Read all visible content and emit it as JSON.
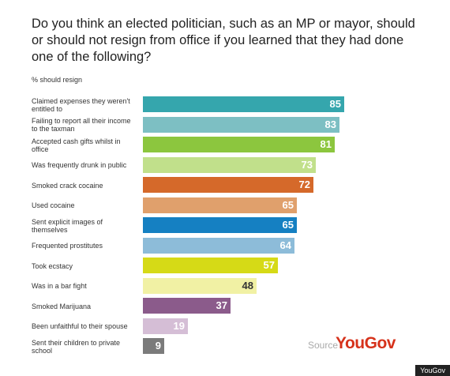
{
  "chart_data": {
    "type": "bar",
    "orientation": "horizontal",
    "title": "Do you think an elected politician, such as an MP or mayor, should or should not resign from office if you learned that they had done one of the following?",
    "subtitle": "% should resign",
    "categories": [
      "Claimed expenses they weren't entitled to",
      "Failing to report all their income to the taxman",
      "Accepted cash gifts whilst in office",
      "Was frequently drunk in public",
      "Smoked crack cocaine",
      "Used cocaine",
      "Sent explicit images of themselves",
      "Frequented prostitutes",
      "Took ecstacy",
      "Was in a bar fight",
      "Smoked Marijuana",
      "Been unfaithful to their spouse",
      "Sent their children to private school"
    ],
    "values": [
      85,
      83,
      81,
      73,
      72,
      65,
      65,
      64,
      57,
      48,
      37,
      19,
      9
    ],
    "colors": [
      "#35a6ad",
      "#7dbfc3",
      "#8cc63e",
      "#c1e08b",
      "#d5692a",
      "#e0a06c",
      "#1580c2",
      "#8dbcd9",
      "#d6da16",
      "#f1f1a4",
      "#8b5b8b",
      "#d5bed6",
      "#7b7b7b"
    ],
    "label_colors": [
      "#fff",
      "#fff",
      "#fff",
      "#fff",
      "#fff",
      "#fff",
      "#fff",
      "#fff",
      "#fff",
      "#333",
      "#fff",
      "#fff",
      "#fff"
    ],
    "source_label": "Source",
    "source_brand": "YouGov",
    "credit": "YouGov"
  }
}
